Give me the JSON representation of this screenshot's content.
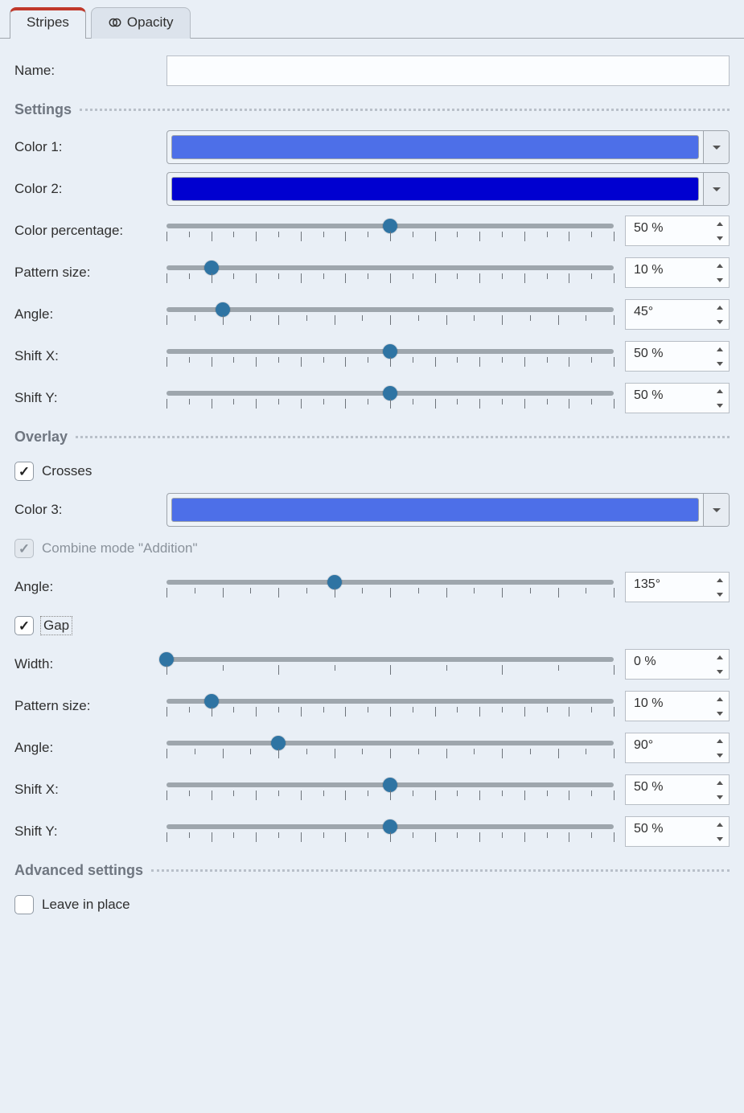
{
  "tabs": {
    "stripes": "Stripes",
    "opacity": "Opacity",
    "active": "stripes"
  },
  "labels": {
    "name": "Name:",
    "settings": "Settings",
    "color1": "Color 1:",
    "color2": "Color 2:",
    "color_pct": "Color percentage:",
    "pattern_size": "Pattern size:",
    "angle": "Angle:",
    "shiftx": "Shift X:",
    "shifty": "Shift Y:",
    "overlay": "Overlay",
    "crosses": "Crosses",
    "color3": "Color 3:",
    "combine": "Combine mode \"Addition\"",
    "gap": "Gap",
    "width": "Width:",
    "advanced": "Advanced settings",
    "leave": "Leave in place"
  },
  "name_value": "",
  "colors": {
    "color1": "#4d6fe8",
    "color2": "#0000d0",
    "color3": "#4d6fe8"
  },
  "sliders": {
    "settings_color_pct": {
      "pct": 50,
      "value": "50 %",
      "ticks": 11
    },
    "settings_pattern": {
      "pct": 10,
      "value": "10 %",
      "ticks": 11
    },
    "settings_angle": {
      "pct": 12.5,
      "value": "45°",
      "ticks": 9
    },
    "settings_shiftx": {
      "pct": 50,
      "value": "50 %",
      "ticks": 11
    },
    "settings_shifty": {
      "pct": 50,
      "value": "50 %",
      "ticks": 11
    },
    "overlay_angle": {
      "pct": 37.5,
      "value": "135°",
      "ticks": 9
    },
    "gap_width": {
      "pct": 0,
      "value": "0 %",
      "ticks": 5
    },
    "gap_pattern": {
      "pct": 10,
      "value": "10 %",
      "ticks": 11
    },
    "gap_angle": {
      "pct": 25,
      "value": "90°",
      "ticks": 9
    },
    "gap_shiftx": {
      "pct": 50,
      "value": "50 %",
      "ticks": 11
    },
    "gap_shifty": {
      "pct": 50,
      "value": "50 %",
      "ticks": 11
    }
  },
  "checks": {
    "crosses": true,
    "combine": true,
    "combine_disabled": true,
    "gap": true,
    "leave": false
  },
  "style": {
    "bg": "#e9eff6",
    "track": "#9ea6ad",
    "thumb": "#2f74a3",
    "accent_red": "#c0392b",
    "border": "#b8bec6",
    "section_text": "#6f7680",
    "dotted": "#b9c0c9"
  }
}
